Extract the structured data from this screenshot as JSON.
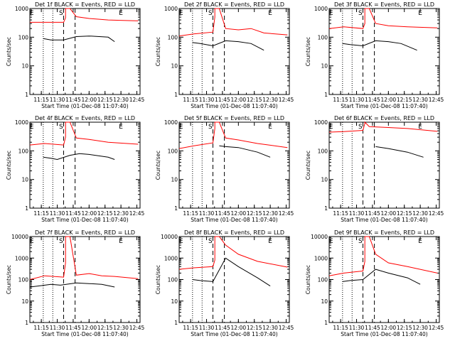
{
  "chart_data": [
    {
      "type": "line",
      "title": "Det 1f BLACK = Events, RED = LLD",
      "xlabel": "Start Time (01-Dec-08 11:07:40)",
      "ylabel": "Counts/sec",
      "ylim": [
        1,
        1000
      ],
      "yticks": [
        "1",
        "10",
        "100",
        "1000"
      ],
      "xticks": [
        "11:15",
        "11:30",
        "11:45",
        "12:00",
        "12:15",
        "12:30",
        "12:45"
      ],
      "xrange": [
        11.07,
        12.8
      ],
      "markers": [
        "E",
        "S",
        "E"
      ],
      "series": [
        {
          "name": "LLD",
          "color": "#ff0000",
          "x": [
            11.07,
            11.4,
            11.6,
            11.63,
            11.63,
            11.7,
            11.8,
            12.0,
            12.3,
            12.77
          ],
          "y": [
            330,
            330,
            330,
            470,
            1000,
            1000,
            520,
            450,
            400,
            370
          ]
        },
        {
          "name": "Events",
          "color": "#000000",
          "x": [
            11.28,
            11.4,
            11.6,
            11.8,
            12.0,
            12.3,
            12.4
          ],
          "y": [
            90,
            80,
            80,
            105,
            110,
            100,
            70
          ]
        }
      ]
    },
    {
      "type": "line",
      "title": "Det 2f BLACK = Events, RED = LLD",
      "xlabel": "Start Time (01-Dec-08 11:07:40)",
      "ylabel": "Counts/sec",
      "ylim": [
        1,
        1000
      ],
      "yticks": [
        "1",
        "10",
        "100",
        "1000"
      ],
      "xticks": [
        "11:15",
        "11:30",
        "11:45",
        "12:00",
        "12:15",
        "12:30",
        "12:45"
      ],
      "xrange": [
        11.07,
        12.8
      ],
      "markers": [
        "E",
        "S",
        "E"
      ],
      "series": [
        {
          "name": "LLD",
          "color": "#ff0000",
          "x": [
            11.07,
            11.3,
            11.6,
            11.63,
            11.63,
            11.7,
            11.8,
            12.0,
            12.2,
            12.4,
            12.77
          ],
          "y": [
            110,
            130,
            150,
            500,
            1000,
            1000,
            200,
            180,
            200,
            140,
            120
          ]
        },
        {
          "name": "Events",
          "color": "#000000",
          "x": [
            11.28,
            11.4,
            11.6,
            11.8,
            12.0,
            12.2,
            12.4
          ],
          "y": [
            65,
            60,
            50,
            75,
            70,
            60,
            35
          ]
        }
      ]
    },
    {
      "type": "line",
      "title": "Det 3f BLACK = Events, RED = LLD",
      "xlabel": "Start Time (01-Dec-08 11:07:40)",
      "ylabel": "Counts/sec",
      "ylim": [
        1,
        1000
      ],
      "yticks": [
        "1",
        "10",
        "100",
        "1000"
      ],
      "xticks": [
        "11:15",
        "11:30",
        "11:45",
        "12:00",
        "12:15",
        "12:30",
        "12:45"
      ],
      "xrange": [
        11.07,
        12.8
      ],
      "markers": [
        "E",
        "S",
        "E"
      ],
      "series": [
        {
          "name": "LLD",
          "color": "#ff0000",
          "x": [
            11.07,
            11.3,
            11.6,
            11.63,
            11.63,
            11.7,
            11.8,
            12.0,
            12.3,
            12.77
          ],
          "y": [
            200,
            230,
            200,
            300,
            1000,
            1000,
            300,
            250,
            230,
            210
          ]
        },
        {
          "name": "Events",
          "color": "#000000",
          "x": [
            11.28,
            11.4,
            11.6,
            11.8,
            12.0,
            12.2,
            12.45
          ],
          "y": [
            60,
            55,
            50,
            75,
            70,
            60,
            35
          ]
        }
      ]
    },
    {
      "type": "line",
      "title": "Det 4f BLACK = Events, RED = LLD",
      "xlabel": "Start Time (01-Dec-08 11:07:40)",
      "ylabel": "Counts/sec",
      "ylim": [
        1,
        1000
      ],
      "yticks": [
        "1",
        "10",
        "100",
        "1000"
      ],
      "xticks": [
        "11:15",
        "11:30",
        "11:45",
        "12:00",
        "12:15",
        "12:30",
        "12:45"
      ],
      "xrange": [
        11.07,
        12.8
      ],
      "markers": [
        "E",
        "S",
        "E"
      ],
      "series": [
        {
          "name": "LLD",
          "color": "#ff0000",
          "x": [
            11.07,
            11.3,
            11.6,
            11.63,
            11.63,
            11.7,
            11.8,
            12.0,
            12.3,
            12.77
          ],
          "y": [
            160,
            180,
            160,
            300,
            1000,
            1000,
            280,
            250,
            200,
            170
          ]
        },
        {
          "name": "Events",
          "color": "#000000",
          "x": [
            11.28,
            11.4,
            11.5,
            11.7,
            11.85,
            12.0,
            12.3,
            12.4
          ],
          "y": [
            60,
            55,
            50,
            70,
            80,
            75,
            60,
            50
          ]
        }
      ]
    },
    {
      "type": "line",
      "title": "Det 5f BLACK = Events, RED = LLD",
      "xlabel": "Start Time (01-Dec-08 11:07:40)",
      "ylabel": "Counts/sec",
      "ylim": [
        1,
        1000
      ],
      "yticks": [
        "1",
        "10",
        "100",
        "1000"
      ],
      "xticks": [
        "11:15",
        "11:30",
        "11:45",
        "12:00",
        "12:15",
        "12:30",
        "12:45"
      ],
      "xrange": [
        11.07,
        12.8
      ],
      "markers": [
        "E",
        "S",
        "E"
      ],
      "series": [
        {
          "name": "LLD",
          "color": "#ff0000",
          "x": [
            11.07,
            11.3,
            11.6,
            11.63,
            11.63,
            11.7,
            11.8,
            12.0,
            12.3,
            12.77
          ],
          "y": [
            120,
            150,
            190,
            600,
            1000,
            1000,
            280,
            240,
            180,
            130
          ]
        },
        {
          "name": "Events",
          "color": "#000000",
          "x": [
            11.7,
            11.8,
            12.0,
            12.3,
            12.5
          ],
          "y": [
            150,
            140,
            130,
            90,
            60
          ]
        }
      ]
    },
    {
      "type": "line",
      "title": "Det 6f BLACK = Events, RED = LLD",
      "xlabel": "Start Time (01-Dec-08 11:07:40)",
      "ylabel": "Counts/sec",
      "ylim": [
        1,
        1000
      ],
      "yticks": [
        "1",
        "10",
        "100",
        "1000"
      ],
      "xticks": [
        "11:15",
        "11:30",
        "11:45",
        "12:00",
        "12:15",
        "12:30",
        "12:45"
      ],
      "xrange": [
        11.07,
        12.8
      ],
      "markers": [
        "E",
        "S",
        "E"
      ],
      "series": [
        {
          "name": "LLD",
          "color": "#ff0000",
          "x": [
            11.07,
            11.3,
            11.6,
            11.63,
            11.63,
            11.7,
            12.0,
            12.3,
            12.77
          ],
          "y": [
            450,
            470,
            520,
            900,
            1000,
            700,
            650,
            600,
            480
          ]
        },
        {
          "name": "Events",
          "color": "#000000",
          "x": [
            11.8,
            12.0,
            12.3,
            12.55
          ],
          "y": [
            140,
            120,
            90,
            60
          ]
        }
      ]
    },
    {
      "type": "line",
      "title": "Det 7f BLACK = Events, RED = LLD",
      "xlabel": "Start Time (01-Dec-08 11:07:40)",
      "ylabel": "Counts/sec",
      "ylim": [
        1,
        10000
      ],
      "yticks": [
        "1",
        "10",
        "100",
        "1000",
        "10000"
      ],
      "xticks": [
        "11:15",
        "11:30",
        "11:45",
        "12:00",
        "12:15",
        "12:30",
        "12:45"
      ],
      "xrange": [
        11.07,
        12.8
      ],
      "markers": [
        "E",
        "S",
        "E"
      ],
      "series": [
        {
          "name": "LLD",
          "color": "#ff0000",
          "x": [
            11.07,
            11.3,
            11.6,
            11.63,
            11.63,
            11.7,
            11.8,
            12.0,
            12.2,
            12.4,
            12.77
          ],
          "y": [
            100,
            150,
            130,
            600,
            10000,
            10000,
            160,
            190,
            150,
            140,
            110
          ]
        },
        {
          "name": "Events",
          "color": "#000000",
          "x": [
            11.07,
            11.2,
            11.4,
            11.55,
            11.8,
            12.0,
            12.2,
            12.4
          ],
          "y": [
            45,
            50,
            60,
            55,
            70,
            65,
            60,
            45
          ]
        }
      ]
    },
    {
      "type": "line",
      "title": "Det 8f BLACK = Events, RED = LLD",
      "xlabel": "Start Time (01-Dec-08 11:07:40)",
      "ylabel": "Counts/sec",
      "ylim": [
        1,
        10000
      ],
      "yticks": [
        "1",
        "10",
        "100",
        "1000",
        "10000"
      ],
      "xticks": [
        "11:15",
        "11:30",
        "11:45",
        "12:00",
        "12:15",
        "12:30",
        "12:45"
      ],
      "xrange": [
        11.07,
        12.8
      ],
      "markers": [
        "E",
        "S",
        "E"
      ],
      "series": [
        {
          "name": "LLD",
          "color": "#ff0000",
          "x": [
            11.07,
            11.3,
            11.6,
            11.63,
            11.63,
            11.7,
            11.8,
            12.0,
            12.3,
            12.77
          ],
          "y": [
            300,
            350,
            400,
            800,
            10000,
            10000,
            4000,
            1500,
            700,
            380
          ]
        },
        {
          "name": "Events",
          "color": "#000000",
          "x": [
            11.28,
            11.4,
            11.6,
            11.8,
            12.0,
            12.3,
            12.5
          ],
          "y": [
            100,
            90,
            80,
            1000,
            400,
            120,
            50
          ]
        }
      ]
    },
    {
      "type": "line",
      "title": "Det 9f BLACK = Events, RED = LLD",
      "xlabel": "Start Time (01-Dec-08 11:07:40)",
      "ylabel": "Counts/sec",
      "ylim": [
        1,
        10000
      ],
      "yticks": [
        "1",
        "10",
        "100",
        "1000",
        "10000"
      ],
      "xticks": [
        "11:15",
        "11:30",
        "11:45",
        "12:00",
        "12:15",
        "12:30",
        "12:45"
      ],
      "xrange": [
        11.07,
        12.8
      ],
      "markers": [
        "E",
        "S",
        "E"
      ],
      "series": [
        {
          "name": "LLD",
          "color": "#ff0000",
          "x": [
            11.07,
            11.3,
            11.6,
            11.63,
            11.63,
            11.7,
            11.8,
            12.0,
            12.3,
            12.77
          ],
          "y": [
            150,
            200,
            250,
            700,
            10000,
            10000,
            1500,
            600,
            400,
            200
          ]
        },
        {
          "name": "Events",
          "color": "#000000",
          "x": [
            11.28,
            11.4,
            11.6,
            11.8,
            12.0,
            12.3,
            12.5
          ],
          "y": [
            80,
            90,
            100,
            300,
            200,
            120,
            60
          ]
        }
      ]
    }
  ]
}
